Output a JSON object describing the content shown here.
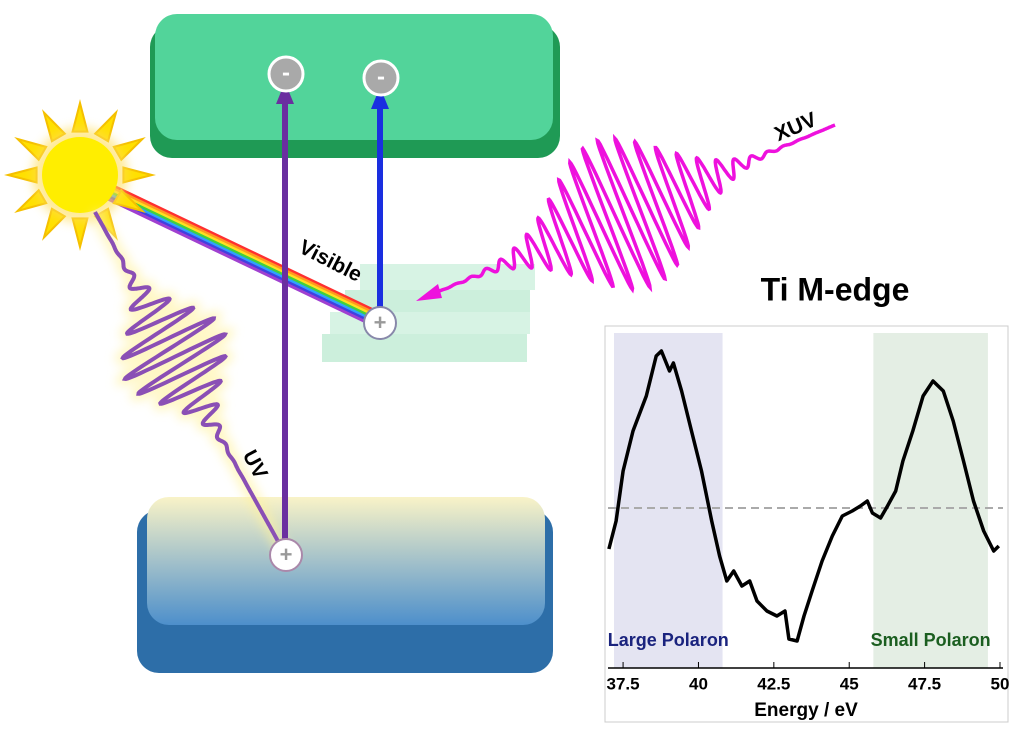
{
  "diagram": {
    "labels": [
      "Visible",
      "UV",
      "XUV"
    ],
    "charges": [
      "-",
      "-",
      "+",
      "+"
    ]
  },
  "chart_data": {
    "type": "line",
    "title": "Ti M-edge",
    "x_label": "Energy / eV",
    "x": [
      37.03,
      37.27,
      37.5,
      37.83,
      38.27,
      38.6,
      38.77,
      39.04,
      39.17,
      39.44,
      39.77,
      40.1,
      40.44,
      40.7,
      40.94,
      41.17,
      41.44,
      41.7,
      41.94,
      42.27,
      42.6,
      42.87,
      43.0,
      43.27,
      43.5,
      43.77,
      44.1,
      44.44,
      44.77,
      45.1,
      45.37,
      45.6,
      45.77,
      46.04,
      46.27,
      46.54,
      46.78,
      47.11,
      47.45,
      47.78,
      48.12,
      48.45,
      48.79,
      49.12,
      49.46,
      49.79,
      49.96
    ],
    "values": [
      -0.41,
      -0.13,
      0.37,
      0.77,
      1.12,
      1.52,
      1.57,
      1.37,
      1.45,
      1.17,
      0.77,
      0.37,
      -0.13,
      -0.48,
      -0.73,
      -0.63,
      -0.78,
      -0.73,
      -0.93,
      -1.03,
      -1.08,
      -1.03,
      -1.31,
      -1.33,
      -1.08,
      -0.83,
      -0.53,
      -0.28,
      -0.08,
      -0.03,
      0.02,
      0.07,
      -0.05,
      -0.1,
      0.02,
      0.17,
      0.47,
      0.77,
      1.12,
      1.27,
      1.17,
      0.87,
      0.47,
      0.07,
      -0.23,
      -0.43,
      -0.38
    ],
    "color": "#000000",
    "xlim": [
      37,
      50.1
    ],
    "ylim": [
      -1.6,
      1.75
    ],
    "xticks": [
      37.5,
      40,
      42.5,
      45,
      47.5,
      50
    ],
    "baseline": 0,
    "regions": [
      {
        "name": "Large Polaron",
        "x": [
          37.2,
          40.8
        ],
        "color": "#e4e4f2",
        "label_color": "#1a237e"
      },
      {
        "name": "Small Polaron",
        "x": [
          45.8,
          49.6
        ],
        "color": "#e4eee4",
        "label_color": "#1b5e20"
      }
    ]
  }
}
